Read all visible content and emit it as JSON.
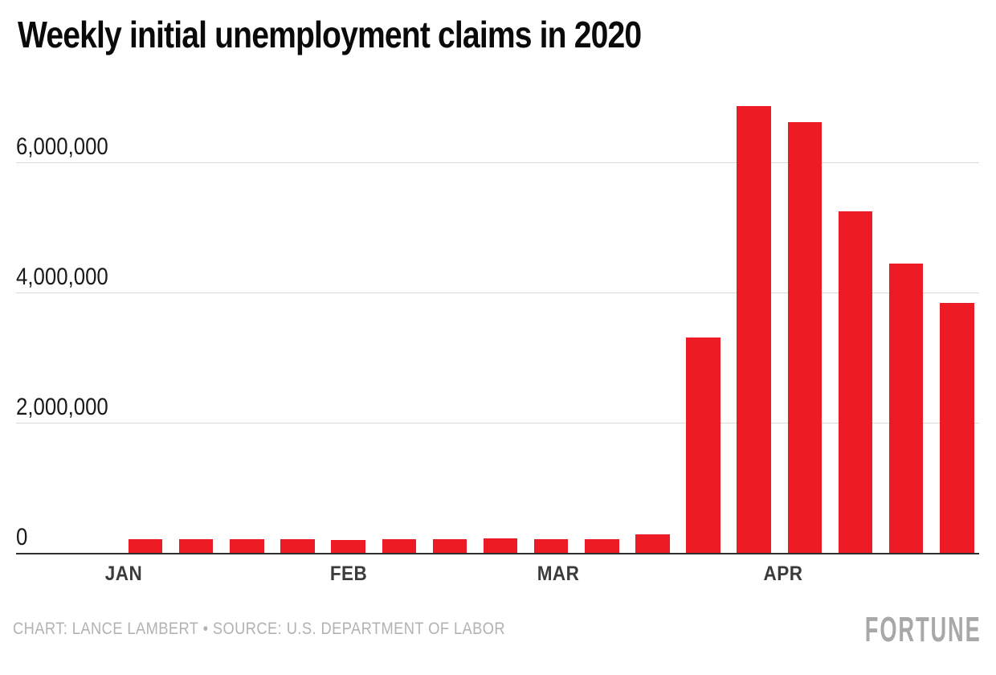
{
  "header": {
    "title": "Weekly initial unemployment claims in 2020"
  },
  "chart_data": {
    "type": "bar",
    "title": "Weekly initial unemployment claims in 2020",
    "ylabel": "",
    "xlabel": "",
    "grid": true,
    "legend": "none",
    "bar_color": "#ED1C24",
    "gridline_color": "#d8d8d8",
    "axis_color": "#2f2f2f",
    "y_axis": {
      "range": [
        0,
        6900000
      ],
      "ticks": [
        {
          "label": "0",
          "value": 0
        },
        {
          "label": "2,000,000",
          "value": 2000000
        },
        {
          "label": "4,000,000",
          "value": 4000000
        },
        {
          "label": "6,000,000",
          "value": 6000000
        }
      ]
    },
    "x_axis": {
      "month_ticks": [
        {
          "label": "JAN",
          "day_of_year": 0
        },
        {
          "label": "FEB",
          "day_of_year": 31
        },
        {
          "label": "MAR",
          "day_of_year": 60
        },
        {
          "label": "APR",
          "day_of_year": 91
        }
      ]
    },
    "series": [
      {
        "name": "Initial unemployment claims",
        "points": [
          {
            "week_ending": "Jan 4",
            "day_of_year": 3,
            "value": 214000
          },
          {
            "week_ending": "Jan 11",
            "day_of_year": 10,
            "value": 204000
          },
          {
            "week_ending": "Jan 18",
            "day_of_year": 17,
            "value": 211000
          },
          {
            "week_ending": "Jan 25",
            "day_of_year": 24,
            "value": 216000
          },
          {
            "week_ending": "Feb 1",
            "day_of_year": 31,
            "value": 202000
          },
          {
            "week_ending": "Feb 8",
            "day_of_year": 38,
            "value": 205000
          },
          {
            "week_ending": "Feb 15",
            "day_of_year": 45,
            "value": 210000
          },
          {
            "week_ending": "Feb 22",
            "day_of_year": 52,
            "value": 219000
          },
          {
            "week_ending": "Feb 29",
            "day_of_year": 59,
            "value": 216000
          },
          {
            "week_ending": "Mar 7",
            "day_of_year": 66,
            "value": 211000
          },
          {
            "week_ending": "Mar 14",
            "day_of_year": 73,
            "value": 282000
          },
          {
            "week_ending": "Mar 21",
            "day_of_year": 80,
            "value": 3307000
          },
          {
            "week_ending": "Mar 28",
            "day_of_year": 87,
            "value": 6867000
          },
          {
            "week_ending": "Apr 4",
            "day_of_year": 94,
            "value": 6615000
          },
          {
            "week_ending": "Apr 11",
            "day_of_year": 101,
            "value": 5245000
          },
          {
            "week_ending": "Apr 18",
            "day_of_year": 108,
            "value": 4442000
          },
          {
            "week_ending": "Apr 25",
            "day_of_year": 115,
            "value": 3839000
          }
        ]
      }
    ]
  },
  "footer": {
    "byline": "CHART: LANCE LAMBERT • SOURCE: U.S. DEPARTMENT OF LABOR",
    "logo": "FORTUNE"
  }
}
